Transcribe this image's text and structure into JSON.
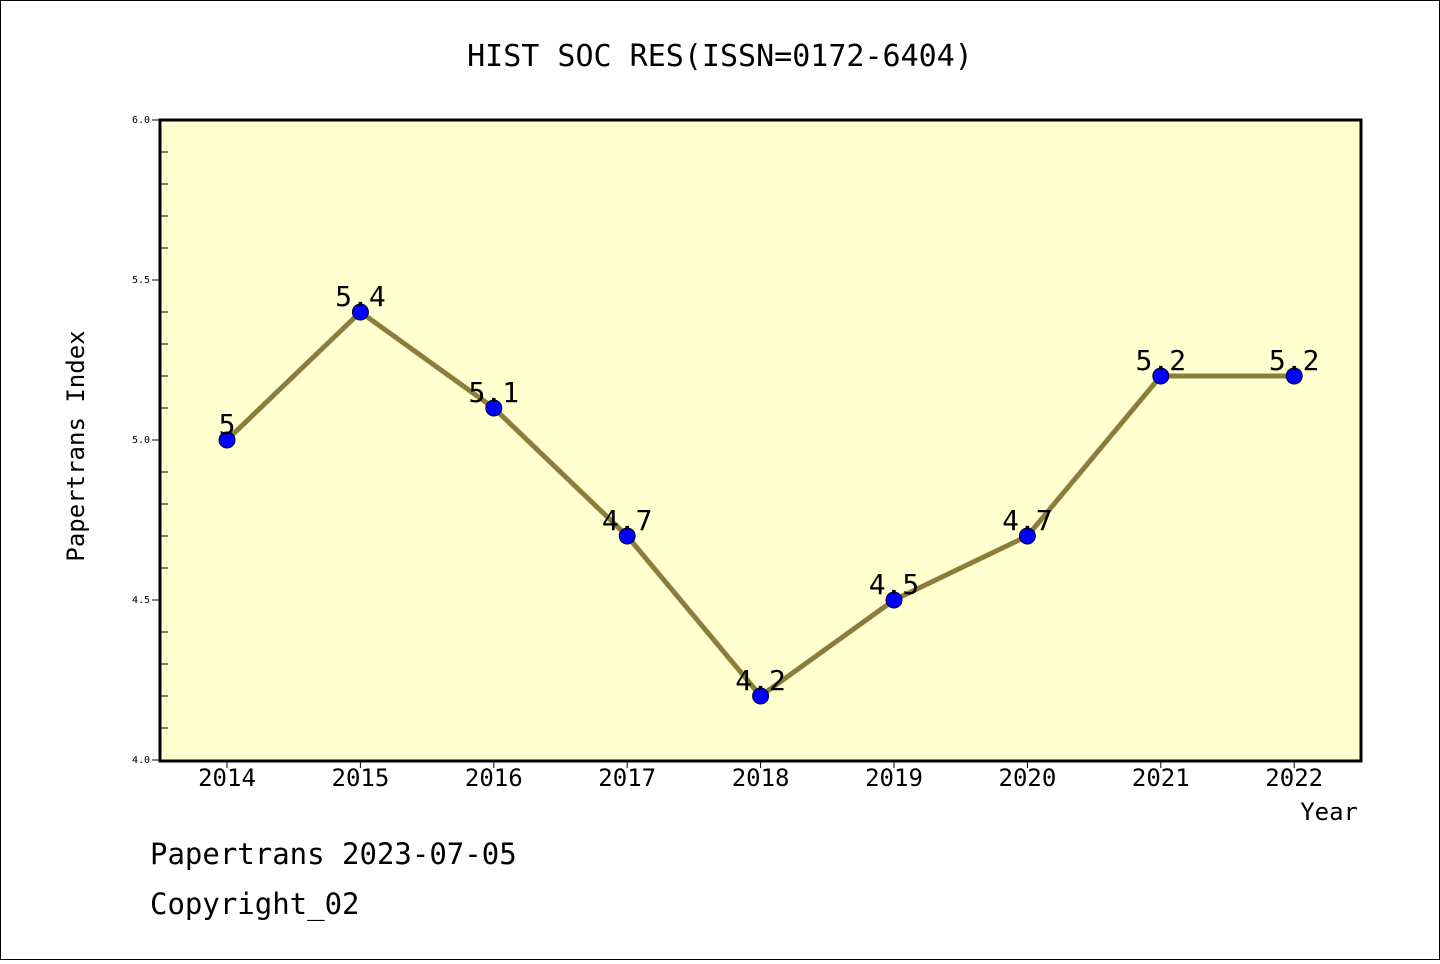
{
  "chart_data": {
    "type": "line",
    "title": "HIST SOC RES(ISSN=0172-6404)",
    "xlabel": "Year",
    "ylabel": "Papertrans Index",
    "categories": [
      "2014",
      "2015",
      "2016",
      "2017",
      "2018",
      "2019",
      "2020",
      "2021",
      "2022"
    ],
    "series": [
      {
        "values": [
          5,
          5.4,
          5.1,
          4.7,
          4.2,
          4.5,
          4.7,
          5.2,
          5.2
        ],
        "data_labels": [
          "5",
          "5.4",
          "5.1",
          "4.7",
          "4.2",
          "4.5",
          "4.7",
          "5.2",
          "5.2"
        ]
      }
    ],
    "ylim": [
      4.0,
      6.0
    ],
    "yticks": [
      "4.0",
      "4.5",
      "5.0",
      "5.5",
      "6.0"
    ],
    "grid": false,
    "colors": {
      "plot_background": "#ffffd0",
      "line": "#8b7d3a",
      "marker": "#0000ff"
    }
  },
  "footer": {
    "line1": "Papertrans 2023-07-05",
    "line2": "Copyright_02"
  }
}
